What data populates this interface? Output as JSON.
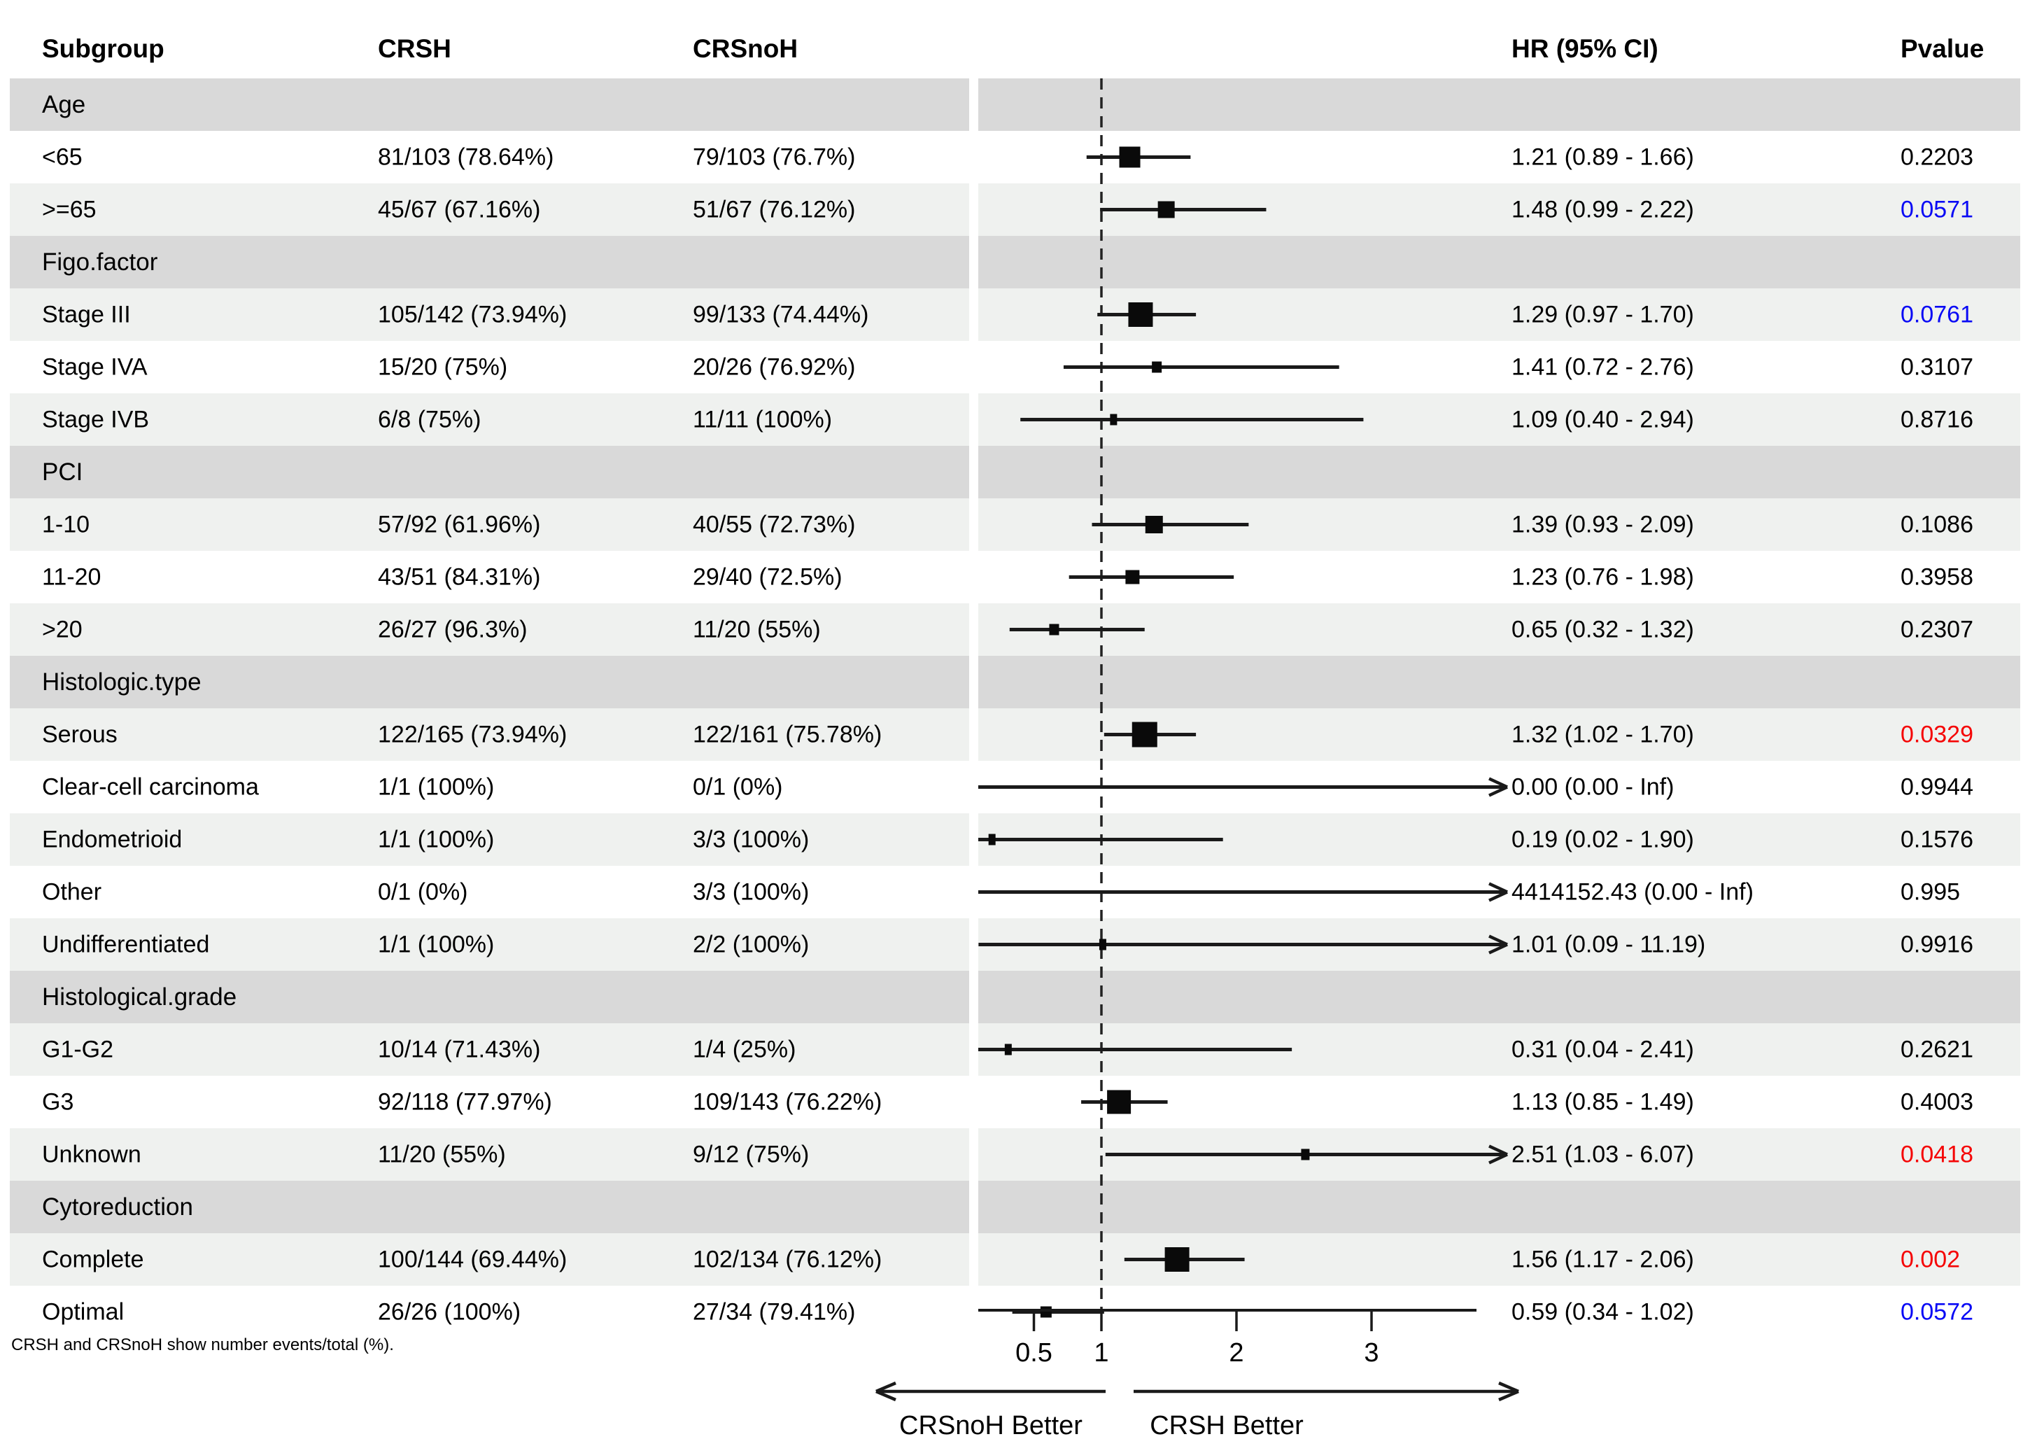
{
  "colors": {
    "section_band": "#d9d9d9",
    "light_band": "#eff1ef",
    "white_band": "#ffffff",
    "text": "#000000",
    "p_blue": "#0a0af5",
    "p_red": "#f50505",
    "marker": "#0a0a0a"
  },
  "footnote": "CRSH and CRSnoH show number events/total (%).",
  "chart_data": {
    "type": "forest",
    "columns": [
      "Subgroup",
      "CRSH",
      "CRSnoH",
      "HR (95% CI)",
      "Pvalue"
    ],
    "x_axis": {
      "scale": "linear",
      "ticks": [
        "0.5",
        "1",
        "2",
        "3"
      ],
      "tick_values": [
        0.5,
        1,
        2,
        3
      ],
      "reference_line": 1
    },
    "direction_labels": {
      "left": "CRSnoH Better",
      "right": "CRSH Better"
    },
    "rows": [
      {
        "type": "section",
        "label": "Age"
      },
      {
        "type": "row",
        "label": "<65",
        "crsh": "81/103 (78.64%)",
        "crsnoh": "79/103 (76.7%)",
        "hr_text": "1.21 (0.89 - 1.66)",
        "pvalue": "0.2203",
        "p_color": "black",
        "est": 1.21,
        "lo": 0.89,
        "hi": 1.66,
        "weight": 206,
        "shade": "white"
      },
      {
        "type": "row",
        "label": ">=65",
        "crsh": "45/67 (67.16%)",
        "crsnoh": "51/67 (76.12%)",
        "hr_text": "1.48 (0.99 - 2.22)",
        "pvalue": "0.0571",
        "p_color": "blue",
        "est": 1.48,
        "lo": 0.99,
        "hi": 2.22,
        "weight": 134,
        "shade": "light"
      },
      {
        "type": "section",
        "label": "Figo.factor"
      },
      {
        "type": "row",
        "label": "Stage III",
        "crsh": "105/142 (73.94%)",
        "crsnoh": "99/133 (74.44%)",
        "hr_text": "1.29 (0.97 - 1.70)",
        "pvalue": "0.0761",
        "p_color": "blue",
        "est": 1.29,
        "lo": 0.97,
        "hi": 1.7,
        "weight": 275,
        "shade": "light"
      },
      {
        "type": "row",
        "label": "Stage IVA",
        "crsh": "15/20 (75%)",
        "crsnoh": "20/26 (76.92%)",
        "hr_text": "1.41 (0.72 - 2.76)",
        "pvalue": "0.3107",
        "p_color": "black",
        "est": 1.41,
        "lo": 0.72,
        "hi": 2.76,
        "weight": 46,
        "shade": "white"
      },
      {
        "type": "row",
        "label": "Stage IVB",
        "crsh": "6/8 (75%)",
        "crsnoh": "11/11 (100%)",
        "hr_text": "1.09 (0.40 - 2.94)",
        "pvalue": "0.8716",
        "p_color": "black",
        "est": 1.09,
        "lo": 0.4,
        "hi": 2.94,
        "weight": 19,
        "shade": "light"
      },
      {
        "type": "section",
        "label": "PCI"
      },
      {
        "type": "row",
        "label": "1-10",
        "crsh": "57/92 (61.96%)",
        "crsnoh": "40/55 (72.73%)",
        "hr_text": "1.39 (0.93 - 2.09)",
        "pvalue": "0.1086",
        "p_color": "black",
        "est": 1.39,
        "lo": 0.93,
        "hi": 2.09,
        "weight": 147,
        "shade": "light"
      },
      {
        "type": "row",
        "label": "11-20",
        "crsh": "43/51 (84.31%)",
        "crsnoh": "29/40 (72.5%)",
        "hr_text": "1.23 (0.76 - 1.98)",
        "pvalue": "0.3958",
        "p_color": "black",
        "est": 1.23,
        "lo": 0.76,
        "hi": 1.98,
        "weight": 91,
        "shade": "white"
      },
      {
        "type": "row",
        "label": ">20",
        "crsh": "26/27 (96.3%)",
        "crsnoh": "11/20 (55%)",
        "hr_text": "0.65 (0.32 - 1.32)",
        "pvalue": "0.2307",
        "p_color": "black",
        "est": 0.65,
        "lo": 0.32,
        "hi": 1.32,
        "weight": 47,
        "shade": "light"
      },
      {
        "type": "section",
        "label": "Histologic.type"
      },
      {
        "type": "row",
        "label": "Serous",
        "crsh": "122/165 (73.94%)",
        "crsnoh": "122/161 (75.78%)",
        "hr_text": "1.32 (1.02 - 1.70)",
        "pvalue": "0.0329",
        "p_color": "red",
        "est": 1.32,
        "lo": 1.02,
        "hi": 1.7,
        "weight": 326,
        "shade": "light"
      },
      {
        "type": "row",
        "label": "Clear-cell carcinoma",
        "crsh": "1/1 (100%)",
        "crsnoh": "0/1 (0%)",
        "hr_text": "0.00 (0.00 - Inf)",
        "pvalue": "0.9944",
        "p_color": "black",
        "est": 0.0,
        "lo": 0.0,
        "hi": "Inf",
        "weight": 2,
        "shade": "white"
      },
      {
        "type": "row",
        "label": "Endometrioid",
        "crsh": "1/1 (100%)",
        "crsnoh": "3/3 (100%)",
        "hr_text": "0.19 (0.02 - 1.90)",
        "pvalue": "0.1576",
        "p_color": "black",
        "est": 0.19,
        "lo": 0.02,
        "hi": 1.9,
        "weight": 4,
        "shade": "light"
      },
      {
        "type": "row",
        "label": "Other",
        "crsh": "0/1 (0%)",
        "crsnoh": "3/3 (100%)",
        "hr_text": "4414152.43 (0.00 - Inf)",
        "pvalue": "0.995",
        "p_color": "black",
        "est": 4414152.43,
        "lo": 0.0,
        "hi": "Inf",
        "weight": 4,
        "shade": "white"
      },
      {
        "type": "row",
        "label": "Undifferentiated",
        "crsh": "1/1 (100%)",
        "crsnoh": "2/2 (100%)",
        "hr_text": "1.01 (0.09 - 11.19)",
        "pvalue": "0.9916",
        "p_color": "black",
        "est": 1.01,
        "lo": 0.09,
        "hi": 11.19,
        "weight": 3,
        "shade": "light"
      },
      {
        "type": "section",
        "label": "Histological.grade"
      },
      {
        "type": "row",
        "label": "G1-G2",
        "crsh": "10/14 (71.43%)",
        "crsnoh": "1/4 (25%)",
        "hr_text": "0.31 (0.04 - 2.41)",
        "pvalue": "0.2621",
        "p_color": "black",
        "est": 0.31,
        "lo": 0.04,
        "hi": 2.41,
        "weight": 18,
        "shade": "light"
      },
      {
        "type": "row",
        "label": "G3",
        "crsh": "92/118 (77.97%)",
        "crsnoh": "109/143 (76.22%)",
        "hr_text": "1.13 (0.85 - 1.49)",
        "pvalue": "0.4003",
        "p_color": "black",
        "est": 1.13,
        "lo": 0.85,
        "hi": 1.49,
        "weight": 261,
        "shade": "white"
      },
      {
        "type": "row",
        "label": "Unknown",
        "crsh": "11/20 (55%)",
        "crsnoh": "9/12 (75%)",
        "hr_text": "2.51 (1.03 - 6.07)",
        "pvalue": "0.0418",
        "p_color": "red",
        "est": 2.51,
        "lo": 1.03,
        "hi": 6.07,
        "weight": 32,
        "shade": "light"
      },
      {
        "type": "section",
        "label": "Cytoreduction"
      },
      {
        "type": "row",
        "label": "Complete",
        "crsh": "100/144 (69.44%)",
        "crsnoh": "102/134 (76.12%)",
        "hr_text": "1.56 (1.17 - 2.06)",
        "pvalue": "0.002",
        "p_color": "red",
        "est": 1.56,
        "lo": 1.17,
        "hi": 2.06,
        "weight": 278,
        "shade": "light"
      },
      {
        "type": "row",
        "label": "Optimal",
        "crsh": "26/26 (100%)",
        "crsnoh": "27/34 (79.41%)",
        "hr_text": "0.59 (0.34 - 1.02)",
        "pvalue": "0.0572",
        "p_color": "blue",
        "est": 0.59,
        "lo": 0.34,
        "hi": 1.02,
        "weight": 60,
        "shade": "white"
      }
    ]
  }
}
